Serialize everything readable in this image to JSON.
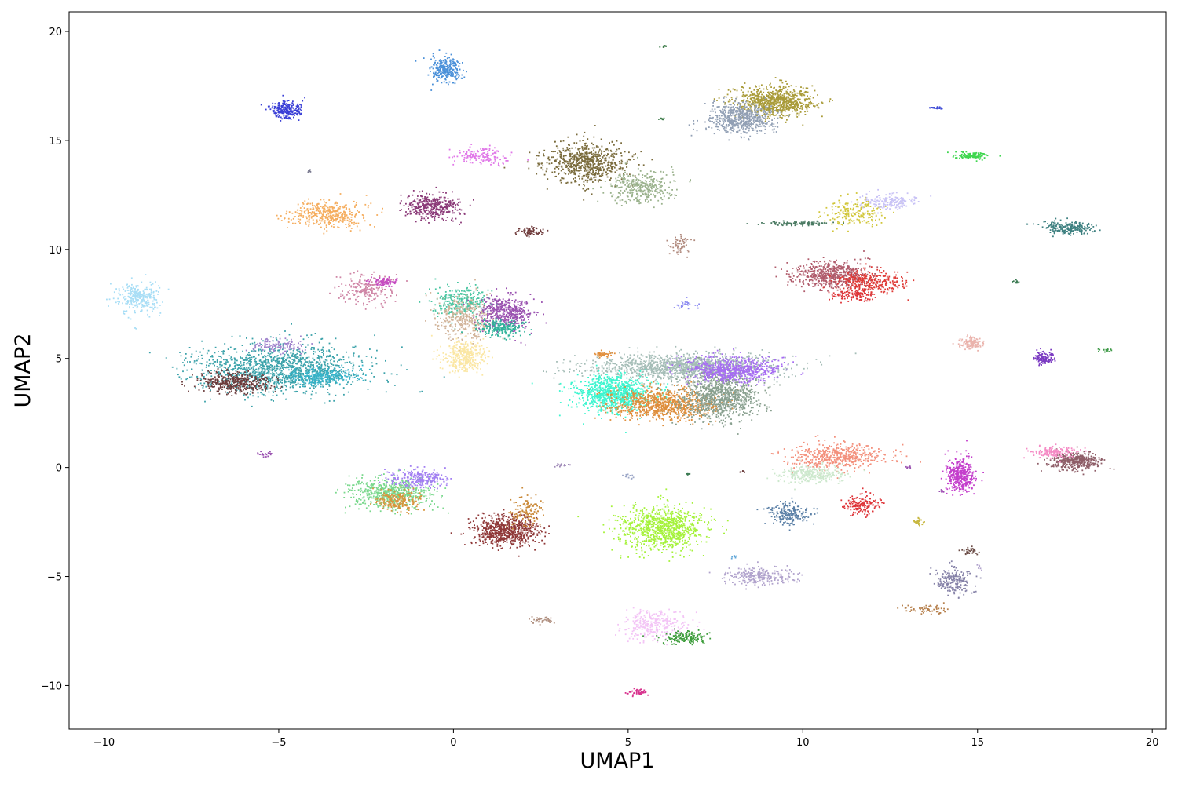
{
  "chart_data": {
    "type": "scatter",
    "title": "",
    "xlabel": "UMAP1",
    "ylabel": "UMAP2",
    "xlim": [
      -11.0,
      20.4
    ],
    "ylim": [
      -12.0,
      20.9
    ],
    "grid": false,
    "legend": "none",
    "xticks": [
      -10,
      -5,
      0,
      5,
      10,
      15,
      20
    ],
    "xtick_labels": [
      "−10",
      "−5",
      "0",
      "5",
      "10",
      "15",
      "20"
    ],
    "yticks": [
      -10,
      -5,
      0,
      5,
      10,
      15,
      20
    ],
    "ytick_labels": [
      "−10",
      "−5",
      "0",
      "5",
      "10",
      "15",
      "20"
    ],
    "clusters": [
      {
        "x": -0.2,
        "y": 18.2,
        "sx": 0.22,
        "sy": 0.3,
        "n": 260,
        "color": "#4a90d9"
      },
      {
        "x": -4.8,
        "y": 16.4,
        "sx": 0.22,
        "sy": 0.2,
        "n": 240,
        "color": "#3a3fd6"
      },
      {
        "x": -3.6,
        "y": 11.6,
        "sx": 0.5,
        "sy": 0.3,
        "n": 400,
        "color": "#f5ad5e"
      },
      {
        "x": -0.6,
        "y": 12.0,
        "sx": 0.38,
        "sy": 0.3,
        "n": 380,
        "color": "#8b3a78"
      },
      {
        "x": 0.8,
        "y": 14.3,
        "sx": 0.4,
        "sy": 0.22,
        "n": 140,
        "color": "#e077e8"
      },
      {
        "x": 2.2,
        "y": 10.8,
        "sx": 0.2,
        "sy": 0.12,
        "n": 70,
        "color": "#6e3a3a"
      },
      {
        "x": -9.0,
        "y": 7.8,
        "sx": 0.3,
        "sy": 0.35,
        "n": 300,
        "color": "#a9def6"
      },
      {
        "x": -2.5,
        "y": 8.2,
        "sx": 0.35,
        "sy": 0.35,
        "n": 200,
        "color": "#cf86a6"
      },
      {
        "x": -2.0,
        "y": 8.5,
        "sx": 0.2,
        "sy": 0.1,
        "n": 80,
        "color": "#c54bc0"
      },
      {
        "x": -5.0,
        "y": 4.5,
        "sx": 1.2,
        "sy": 0.55,
        "n": 1300,
        "color": "#3ba2aa"
      },
      {
        "x": -3.8,
        "y": 4.2,
        "sx": 0.5,
        "sy": 0.2,
        "n": 300,
        "color": "#36b3c9"
      },
      {
        "x": -6.2,
        "y": 3.9,
        "sx": 0.5,
        "sy": 0.25,
        "n": 400,
        "color": "#6b3c3c"
      },
      {
        "x": -5.0,
        "y": 5.6,
        "sx": 0.4,
        "sy": 0.15,
        "n": 120,
        "color": "#a083cc"
      },
      {
        "x": 0.2,
        "y": 7.6,
        "sx": 0.4,
        "sy": 0.35,
        "n": 300,
        "color": "#4ac6a2"
      },
      {
        "x": 0.3,
        "y": 6.8,
        "sx": 0.4,
        "sy": 0.5,
        "n": 350,
        "color": "#d1b49a"
      },
      {
        "x": 1.5,
        "y": 7.1,
        "sx": 0.4,
        "sy": 0.4,
        "n": 450,
        "color": "#9a52b0"
      },
      {
        "x": 0.3,
        "y": 5.1,
        "sx": 0.3,
        "sy": 0.35,
        "n": 350,
        "color": "#fbe7a4"
      },
      {
        "x": 1.4,
        "y": 6.4,
        "sx": 0.35,
        "sy": 0.2,
        "n": 200,
        "color": "#2fb39a"
      },
      {
        "x": 6.5,
        "y": 4.6,
        "sx": 1.3,
        "sy": 0.3,
        "n": 1300,
        "color": "#a5bdb7"
      },
      {
        "x": 4.6,
        "y": 3.4,
        "sx": 0.55,
        "sy": 0.4,
        "n": 900,
        "color": "#3cf5cf"
      },
      {
        "x": 6.0,
        "y": 2.9,
        "sx": 0.75,
        "sy": 0.35,
        "n": 900,
        "color": "#de8e3c"
      },
      {
        "x": 7.6,
        "y": 3.3,
        "sx": 0.55,
        "sy": 0.55,
        "n": 1000,
        "color": "#89a08f"
      },
      {
        "x": 8.0,
        "y": 4.5,
        "sx": 0.65,
        "sy": 0.3,
        "n": 700,
        "color": "#a66df2"
      },
      {
        "x": 4.3,
        "y": 5.2,
        "sx": 0.15,
        "sy": 0.08,
        "n": 40,
        "color": "#e28f3c"
      },
      {
        "x": 3.8,
        "y": 14.0,
        "sx": 0.6,
        "sy": 0.45,
        "n": 700,
        "color": "#7a6b3c"
      },
      {
        "x": 5.4,
        "y": 12.8,
        "sx": 0.45,
        "sy": 0.35,
        "n": 350,
        "color": "#9bb28d"
      },
      {
        "x": 9.2,
        "y": 16.8,
        "sx": 0.55,
        "sy": 0.35,
        "n": 800,
        "color": "#a99b38"
      },
      {
        "x": 8.2,
        "y": 16.0,
        "sx": 0.5,
        "sy": 0.35,
        "n": 600,
        "color": "#92a0b5"
      },
      {
        "x": 11.5,
        "y": 11.7,
        "sx": 0.45,
        "sy": 0.3,
        "n": 200,
        "color": "#d1c63a"
      },
      {
        "x": 12.5,
        "y": 12.2,
        "sx": 0.4,
        "sy": 0.2,
        "n": 160,
        "color": "#c8c2f6"
      },
      {
        "x": 9.8,
        "y": 11.2,
        "sx": 0.5,
        "sy": 0.05,
        "n": 100,
        "color": "#4a7a62"
      },
      {
        "x": 14.9,
        "y": 14.3,
        "sx": 0.25,
        "sy": 0.08,
        "n": 120,
        "color": "#3fd64f"
      },
      {
        "x": 17.6,
        "y": 11.0,
        "sx": 0.4,
        "sy": 0.15,
        "n": 220,
        "color": "#3e8080"
      },
      {
        "x": 10.8,
        "y": 8.8,
        "sx": 0.55,
        "sy": 0.3,
        "n": 550,
        "color": "#b05c6c"
      },
      {
        "x": 12.0,
        "y": 8.5,
        "sx": 0.5,
        "sy": 0.25,
        "n": 300,
        "color": "#df3a36"
      },
      {
        "x": 11.5,
        "y": 7.9,
        "sx": 0.3,
        "sy": 0.15,
        "n": 120,
        "color": "#de3438"
      },
      {
        "x": 14.8,
        "y": 5.7,
        "sx": 0.15,
        "sy": 0.15,
        "n": 120,
        "color": "#eab3ac"
      },
      {
        "x": 16.9,
        "y": 5.0,
        "sx": 0.15,
        "sy": 0.15,
        "n": 120,
        "color": "#7b3ac2"
      },
      {
        "x": 6.5,
        "y": 10.2,
        "sx": 0.15,
        "sy": 0.2,
        "n": 60,
        "color": "#b08a7e"
      },
      {
        "x": 11.0,
        "y": 0.5,
        "sx": 0.7,
        "sy": 0.3,
        "n": 500,
        "color": "#f3907c"
      },
      {
        "x": 10.2,
        "y": -0.3,
        "sx": 0.5,
        "sy": 0.2,
        "n": 300,
        "color": "#cde8cd"
      },
      {
        "x": 9.6,
        "y": -2.1,
        "sx": 0.3,
        "sy": 0.25,
        "n": 200,
        "color": "#5a7fa6"
      },
      {
        "x": 11.7,
        "y": -1.7,
        "sx": 0.25,
        "sy": 0.25,
        "n": 150,
        "color": "#de3438"
      },
      {
        "x": 14.5,
        "y": -0.3,
        "sx": 0.2,
        "sy": 0.4,
        "n": 400,
        "color": "#c43fcc"
      },
      {
        "x": 17.8,
        "y": 0.3,
        "sx": 0.35,
        "sy": 0.2,
        "n": 400,
        "color": "#8e5e68"
      },
      {
        "x": 17.2,
        "y": 0.7,
        "sx": 0.35,
        "sy": 0.12,
        "n": 150,
        "color": "#f58bc5"
      },
      {
        "x": -1.8,
        "y": -1.2,
        "sx": 0.6,
        "sy": 0.35,
        "n": 600,
        "color": "#7ad88d"
      },
      {
        "x": -1.0,
        "y": -0.5,
        "sx": 0.4,
        "sy": 0.2,
        "n": 250,
        "color": "#a27ff2"
      },
      {
        "x": -1.6,
        "y": -1.5,
        "sx": 0.35,
        "sy": 0.25,
        "n": 200,
        "color": "#d8943c"
      },
      {
        "x": 1.5,
        "y": -2.9,
        "sx": 0.45,
        "sy": 0.35,
        "n": 700,
        "color": "#8f3838"
      },
      {
        "x": 2.1,
        "y": -2.0,
        "sx": 0.25,
        "sy": 0.35,
        "n": 120,
        "color": "#ca8a3a"
      },
      {
        "x": 6.0,
        "y": -2.8,
        "sx": 0.6,
        "sy": 0.5,
        "n": 900,
        "color": "#a5f23a"
      },
      {
        "x": 8.8,
        "y": -5.0,
        "sx": 0.5,
        "sy": 0.2,
        "n": 250,
        "color": "#b0a2cc"
      },
      {
        "x": 14.3,
        "y": -5.2,
        "sx": 0.3,
        "sy": 0.3,
        "n": 200,
        "color": "#8682a8"
      },
      {
        "x": 13.5,
        "y": -6.5,
        "sx": 0.3,
        "sy": 0.1,
        "n": 60,
        "color": "#b6804d"
      },
      {
        "x": 5.8,
        "y": -7.2,
        "sx": 0.45,
        "sy": 0.35,
        "n": 300,
        "color": "#f3c4f6"
      },
      {
        "x": 6.6,
        "y": -7.8,
        "sx": 0.3,
        "sy": 0.15,
        "n": 150,
        "color": "#3d9d3b"
      },
      {
        "x": 2.5,
        "y": -7.0,
        "sx": 0.2,
        "sy": 0.08,
        "n": 40,
        "color": "#b09080"
      },
      {
        "x": 5.3,
        "y": -10.3,
        "sx": 0.15,
        "sy": 0.08,
        "n": 40,
        "color": "#d8328e"
      },
      {
        "x": 14.8,
        "y": -3.8,
        "sx": 0.12,
        "sy": 0.1,
        "n": 30,
        "color": "#6b4c46"
      },
      {
        "x": 13.3,
        "y": -2.5,
        "sx": 0.1,
        "sy": 0.08,
        "n": 25,
        "color": "#c8b842"
      },
      {
        "x": 13.8,
        "y": 16.5,
        "sx": 0.15,
        "sy": 0.03,
        "n": 25,
        "color": "#3f4bd6"
      },
      {
        "x": 16.1,
        "y": 8.5,
        "sx": 0.05,
        "sy": 0.05,
        "n": 12,
        "color": "#3b7a52"
      },
      {
        "x": 18.7,
        "y": 5.4,
        "sx": 0.1,
        "sy": 0.05,
        "n": 15,
        "color": "#3f9a48"
      },
      {
        "x": 6.7,
        "y": 7.5,
        "sx": 0.15,
        "sy": 0.12,
        "n": 25,
        "color": "#8b8af0"
      },
      {
        "x": -5.4,
        "y": 0.6,
        "sx": 0.12,
        "sy": 0.06,
        "n": 20,
        "color": "#9a52b0"
      },
      {
        "x": 3.1,
        "y": 0.1,
        "sx": 0.1,
        "sy": 0.06,
        "n": 15,
        "color": "#a08ab8"
      },
      {
        "x": 5.0,
        "y": -0.4,
        "sx": 0.1,
        "sy": 0.06,
        "n": 12,
        "color": "#9da8c8"
      },
      {
        "x": -4.1,
        "y": 13.6,
        "sx": 0.03,
        "sy": 0.03,
        "n": 8,
        "color": "#7a7a90"
      },
      {
        "x": 6.0,
        "y": 19.3,
        "sx": 0.05,
        "sy": 0.03,
        "n": 8,
        "color": "#3b7a48"
      },
      {
        "x": 6.0,
        "y": 16.0,
        "sx": 0.05,
        "sy": 0.03,
        "n": 8,
        "color": "#3b7a48"
      },
      {
        "x": 6.7,
        "y": -0.3,
        "sx": 0.04,
        "sy": 0.04,
        "n": 6,
        "color": "#3b7a52"
      },
      {
        "x": 8.3,
        "y": -0.2,
        "sx": 0.05,
        "sy": 0.03,
        "n": 6,
        "color": "#6b3c3c"
      },
      {
        "x": 14.0,
        "y": -1.1,
        "sx": 0.05,
        "sy": 0.03,
        "n": 6,
        "color": "#9a52b0"
      },
      {
        "x": 13.0,
        "y": 0.0,
        "sx": 0.06,
        "sy": 0.03,
        "n": 6,
        "color": "#9a52b0"
      },
      {
        "x": 15.0,
        "y": -4.6,
        "sx": 0.05,
        "sy": 0.08,
        "n": 6,
        "color": "#b0a2cc"
      },
      {
        "x": 8.0,
        "y": -4.1,
        "sx": 0.05,
        "sy": 0.08,
        "n": 6,
        "color": "#5fa6d8"
      }
    ]
  }
}
